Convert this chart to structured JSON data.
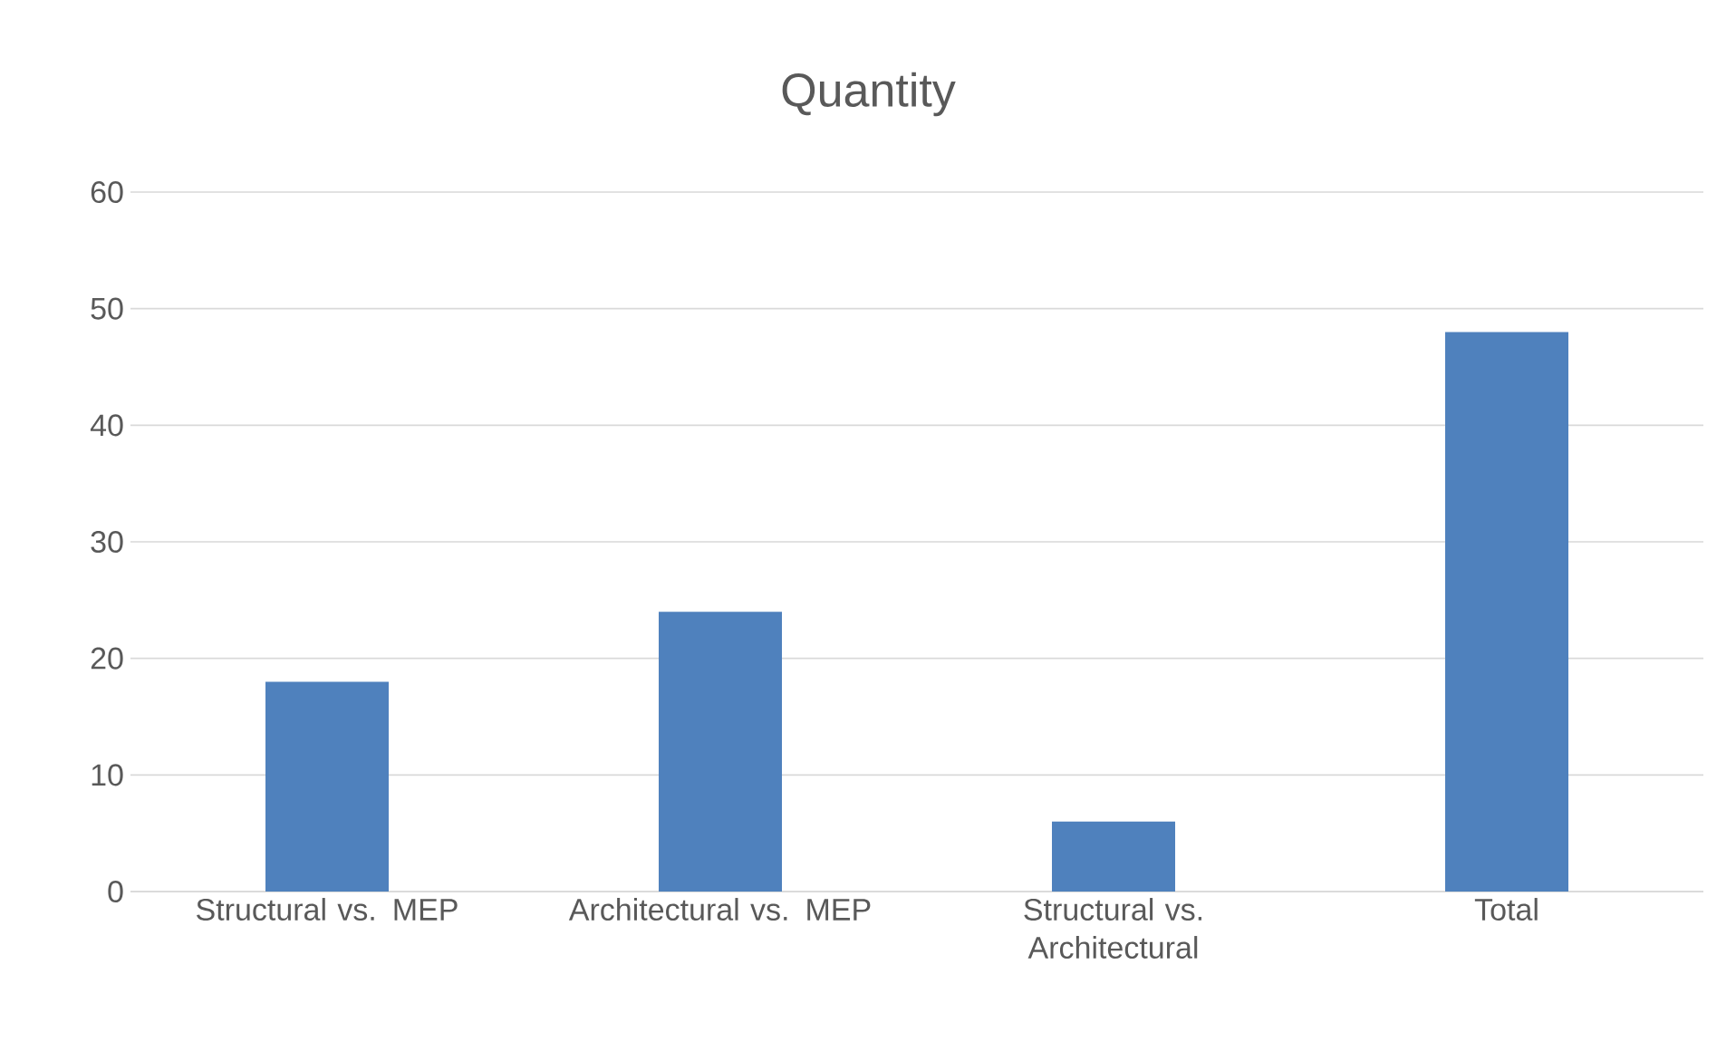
{
  "chart_data": {
    "type": "bar",
    "title": "Quantity",
    "categories": [
      "Structural vs. MEP",
      "Architectural vs. MEP",
      "Structural vs. Architectural",
      "Total"
    ],
    "values": [
      18,
      24,
      6,
      48
    ],
    "color": "#4f81bd",
    "ylim": [
      0,
      60
    ],
    "yticks": [
      0,
      10,
      20,
      30,
      40,
      50,
      60
    ],
    "grid": "y"
  }
}
